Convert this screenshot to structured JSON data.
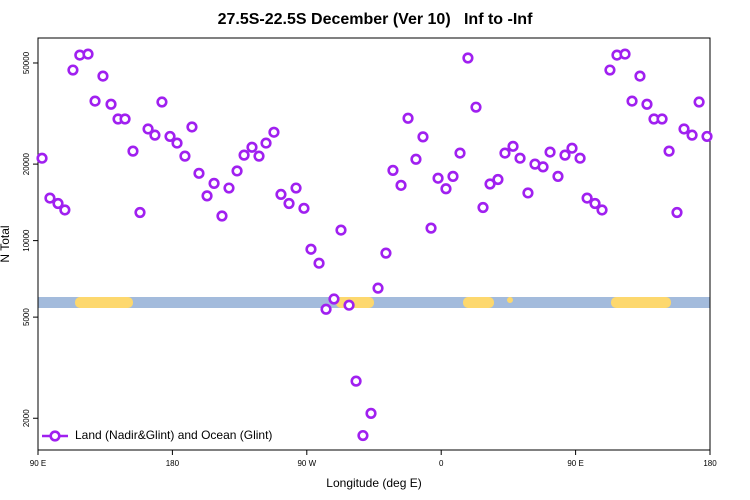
{
  "chart_data": {
    "type": "scatter",
    "title": "27.5S-22.5S December (Ver 10)   Inf to -Inf",
    "x_label": "Longitude (deg E)",
    "y_label": "N Total",
    "log_y": true,
    "grid": false,
    "legend_position": "lower left",
    "xlim": [
      90,
      540
    ],
    "xticks": [
      {
        "value": 90,
        "label": "90 E"
      },
      {
        "value": 180,
        "label": "180"
      },
      {
        "value": 270,
        "label": "90 W"
      },
      {
        "value": 360,
        "label": "0"
      },
      {
        "value": 450,
        "label": "90 E"
      },
      {
        "value": 540,
        "label": "180"
      }
    ],
    "ylim": [
      1500,
      62700
    ],
    "yticks": [
      2000,
      5000,
      10000,
      20000,
      50000
    ],
    "series": [
      {
        "name": "Land (Nadir&Glint) and Ocean (Glint)",
        "color": "#a020f0",
        "x": [
          92.7,
          98,
          103.4,
          108,
          113.4,
          118,
          123.5,
          128.2,
          133.5,
          138.9,
          143.6,
          148.3,
          153.6,
          158.3,
          163.7,
          168.3,
          173,
          178.4,
          183.1,
          188.4,
          193.1,
          197.8,
          203.2,
          207.9,
          213.2,
          217.9,
          223.3,
          228,
          233.3,
          238,
          242.7,
          248,
          252.7,
          258.1,
          262.8,
          268.1,
          272.8,
          278.2,
          282.9,
          288.2,
          292.9,
          298.3,
          303,
          307.6,
          313,
          317.7,
          323,
          327.7,
          333.1,
          337.8,
          343.1,
          347.8,
          353.2,
          357.9,
          363.2,
          367.9,
          372.6,
          377.9,
          383.3,
          388,
          392.7,
          398,
          402.7,
          408.1,
          412.8,
          418.1,
          422.8,
          428.2,
          432.9,
          438.2,
          442.9,
          447.6,
          453,
          457.7,
          463,
          467.7,
          473,
          477.7,
          483.1,
          487.8,
          493.1,
          497.8,
          502.5,
          507.9,
          512.6,
          517.9,
          522.6,
          528,
          532.7,
          538
        ],
        "values": [
          21100,
          14700,
          14000,
          13200,
          46900,
          53700,
          54200,
          35400,
          44400,
          34400,
          30100,
          30100,
          22500,
          12900,
          27500,
          26000,
          35100,
          25700,
          24200,
          21500,
          28000,
          18400,
          15000,
          16800,
          12500,
          16100,
          18800,
          21700,
          23300,
          21500,
          24200,
          26700,
          15200,
          14000,
          16100,
          13400,
          9250,
          8150,
          5370,
          5890,
          11000,
          5570,
          2800,
          1710,
          2090,
          6500,
          8930,
          18900,
          16500,
          30300,
          20900,
          25600,
          11200,
          17600,
          16000,
          17900,
          22100,
          52300,
          33500,
          13500,
          16700,
          17400,
          22100,
          23500,
          21100,
          15400,
          20000,
          19500,
          22300,
          17900,
          21700,
          23100,
          21100,
          14700,
          14000,
          13200,
          46900,
          53700,
          54200,
          35400,
          44400,
          34400,
          30100,
          30100,
          22500,
          12900,
          27500,
          26000,
          35100,
          25700
        ]
      }
    ]
  }
}
